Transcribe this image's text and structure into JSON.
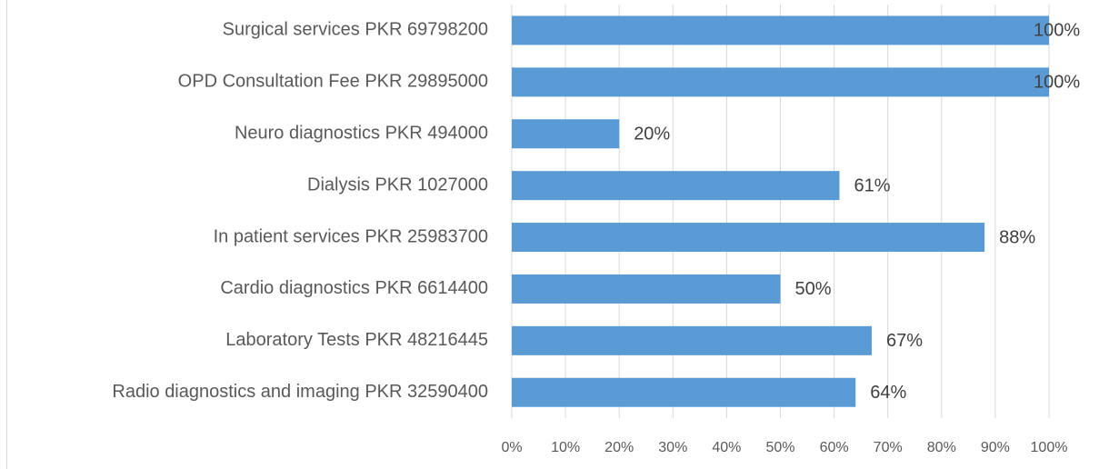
{
  "chart_data": {
    "type": "bar",
    "orientation": "horizontal",
    "categories": [
      "Surgical services PKR 69798200",
      "OPD Consultation Fee PKR 29895000",
      "Neuro diagnostics PKR 494000",
      "Dialysis PKR 1027000",
      "In patient services PKR 25983700",
      "Cardio diagnostics PKR 6614400",
      "Laboratory Tests PKR 48216445",
      "Radio diagnostics and imaging PKR 32590400"
    ],
    "values": [
      100,
      100,
      20,
      61,
      88,
      50,
      67,
      64
    ],
    "value_labels": [
      "100%",
      "100%",
      "20%",
      "61%",
      "88%",
      "50%",
      "67%",
      "64%"
    ],
    "color": "#5b9bd5",
    "xlim": [
      0,
      100
    ],
    "xticks": [
      {
        "value": 0,
        "label": "0%"
      },
      {
        "value": 10,
        "label": "10%"
      },
      {
        "value": 20,
        "label": "20%"
      },
      {
        "value": 30,
        "label": "30%"
      },
      {
        "value": 40,
        "label": "40%"
      },
      {
        "value": 50,
        "label": "50%"
      },
      {
        "value": 60,
        "label": "60%"
      },
      {
        "value": 70,
        "label": "70%"
      },
      {
        "value": 80,
        "label": "80%"
      },
      {
        "value": 90,
        "label": "90%"
      },
      {
        "value": 100,
        "label": "100%"
      }
    ],
    "grid": true
  }
}
